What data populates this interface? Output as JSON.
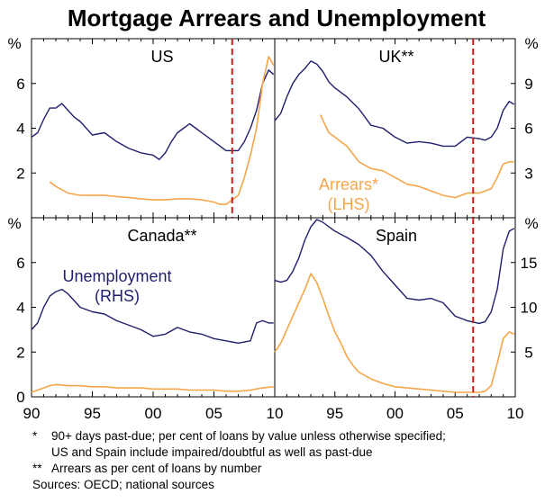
{
  "chart_data": {
    "type": "line",
    "title": "Mortgage Arrears and Unemployment",
    "units": {
      "lhs": "%",
      "rhs": "%"
    },
    "x_tick_labels": [
      "90",
      "95",
      "00",
      "05",
      "10"
    ],
    "colors": {
      "unemployment": "#1f1f6e",
      "arrears": "#f5a64a",
      "marker": "#cc1a1a"
    },
    "panels": [
      {
        "name": "US",
        "lhs_ticks": [
          "2",
          "4",
          "6"
        ],
        "rhs_ticks": [],
        "event_line_year": 2006.5,
        "series": [
          {
            "name": "Unemployment",
            "axis": "rhs",
            "x": [
              1990,
              1990.5,
              1991,
              1991.5,
              1992,
              1992.5,
              1993,
              1993.5,
              1994,
              1995,
              1996,
              1997,
              1998,
              1999,
              2000,
              2000.5,
              2001,
              2001.5,
              2002,
              2002.5,
              2003,
              2003.5,
              2004,
              2005,
              2006,
              2007,
              2007.5,
              2008,
              2008.5,
              2009,
              2009.5,
              2009.9
            ],
            "y": [
              3.6,
              3.8,
              4.4,
              4.9,
              4.9,
              5.1,
              4.8,
              4.5,
              4.3,
              3.7,
              3.8,
              3.4,
              3.1,
              2.9,
              2.8,
              2.6,
              2.9,
              3.4,
              3.8,
              4.0,
              4.2,
              4.0,
              3.8,
              3.4,
              3.0,
              3.0,
              3.4,
              4.0,
              4.8,
              6.0,
              6.6,
              6.4
            ]
          },
          {
            "name": "Arrears",
            "axis": "lhs",
            "x": [
              1991.5,
              1992,
              1993,
              1994,
              1995,
              1996,
              1997,
              1998,
              1999,
              2000,
              2001,
              2002,
              2003,
              2004,
              2005,
              2005.5,
              2006,
              2006.5,
              2007,
              2007.5,
              2008,
              2008.5,
              2009,
              2009.5,
              2009.9
            ],
            "y": [
              1.6,
              1.4,
              1.1,
              1.0,
              1.0,
              1.0,
              0.95,
              0.9,
              0.85,
              0.8,
              0.8,
              0.85,
              0.85,
              0.8,
              0.7,
              0.6,
              0.6,
              0.8,
              1.0,
              1.8,
              2.8,
              4.0,
              6.0,
              7.2,
              6.8
            ]
          }
        ]
      },
      {
        "name": "UK**",
        "lhs_ticks": [],
        "rhs_ticks": [
          "3",
          "6",
          "9"
        ],
        "event_line_year": 2006.5,
        "series": [
          {
            "name": "Unemployment",
            "axis": "rhs",
            "x": [
              1990,
              1990.5,
              1991,
              1991.5,
              1992,
              1992.5,
              1993,
              1993.5,
              1994,
              1994.5,
              1995,
              1996,
              1997,
              1998,
              1999,
              2000,
              2001,
              2002,
              2003,
              2004,
              2005,
              2006,
              2007,
              2007.5,
              2008,
              2008.5,
              2009,
              2009.5,
              2009.9
            ],
            "y": [
              6.5,
              7.0,
              8.1,
              9.0,
              9.6,
              10.0,
              10.5,
              10.3,
              9.8,
              9.1,
              8.7,
              8.1,
              7.3,
              6.2,
              6.0,
              5.4,
              5.0,
              5.1,
              5.0,
              4.8,
              4.8,
              5.4,
              5.3,
              5.2,
              5.4,
              6.0,
              7.2,
              7.8,
              7.6
            ]
          },
          {
            "name": "Arrears",
            "axis": "lhs",
            "x": [
              1993.8,
              1994.5,
              1995,
              1996,
              1997,
              1998,
              1999,
              2000,
              2001,
              2002,
              2003,
              2004,
              2005,
              2006,
              2007,
              2007.5,
              2008,
              2008.5,
              2009,
              2009.5,
              2009.9
            ],
            "y": [
              4.6,
              3.8,
              3.6,
              3.2,
              2.5,
              2.2,
              2.1,
              1.8,
              1.5,
              1.4,
              1.2,
              1.0,
              0.9,
              1.1,
              1.1,
              1.2,
              1.3,
              1.8,
              2.4,
              2.5,
              2.5
            ]
          }
        ]
      },
      {
        "name": "Canada**",
        "lhs_ticks": [
          "0",
          "2",
          "4",
          "6"
        ],
        "rhs_ticks": [],
        "event_line_year": null,
        "series": [
          {
            "name": "Unemployment",
            "axis": "rhs",
            "x": [
              1990,
              1990.5,
              1991,
              1991.5,
              1992,
              1992.5,
              1993,
              1993.5,
              1994,
              1995,
              1996,
              1997,
              1998,
              1999,
              2000,
              2001,
              2002,
              2003,
              2004,
              2005,
              2006,
              2007,
              2008,
              2008.5,
              2009,
              2009.5,
              2009.9
            ],
            "y": [
              3.0,
              3.3,
              4.0,
              4.5,
              4.7,
              4.8,
              4.6,
              4.3,
              4.0,
              3.8,
              3.7,
              3.4,
              3.2,
              3.0,
              2.7,
              2.8,
              3.1,
              2.9,
              2.8,
              2.6,
              2.5,
              2.4,
              2.5,
              3.3,
              3.4,
              3.3,
              3.3
            ]
          },
          {
            "name": "Arrears",
            "axis": "lhs",
            "x": [
              1990,
              1990.5,
              1991,
              1991.5,
              1992,
              1993,
              1994,
              1995,
              1996,
              1997,
              1998,
              1999,
              2000,
              2001,
              2002,
              2003,
              2004,
              2005,
              2006,
              2007,
              2008,
              2009,
              2009.9
            ],
            "y": [
              0.2,
              0.3,
              0.4,
              0.5,
              0.55,
              0.5,
              0.5,
              0.45,
              0.45,
              0.4,
              0.4,
              0.4,
              0.35,
              0.35,
              0.35,
              0.3,
              0.3,
              0.3,
              0.25,
              0.25,
              0.3,
              0.4,
              0.45
            ]
          }
        ]
      },
      {
        "name": "Spain",
        "lhs_ticks": [],
        "rhs_ticks": [
          "5",
          "10",
          "15"
        ],
        "event_line_year": 2006.5,
        "series": [
          {
            "name": "Unemployment",
            "axis": "rhs",
            "x": [
              1990,
              1990.5,
              1991,
              1991.5,
              1992,
              1992.5,
              1993,
              1993.5,
              1994,
              1994.5,
              1995,
              1996,
              1997,
              1998,
              1999,
              2000,
              2001,
              2002,
              2003,
              2004,
              2005,
              2006,
              2007,
              2007.5,
              2008,
              2008.5,
              2009,
              2009.5,
              2009.9
            ],
            "y": [
              13.0,
              12.8,
              13.0,
              14.0,
              15.5,
              17.5,
              19.0,
              19.8,
              19.5,
              19.0,
              18.5,
              17.8,
              17.0,
              15.8,
              14.0,
              12.5,
              11.0,
              10.8,
              11.0,
              10.5,
              9.0,
              8.5,
              8.2,
              8.4,
              9.5,
              12.0,
              16.5,
              18.5,
              18.8
            ]
          },
          {
            "name": "Arrears",
            "axis": "lhs",
            "x": [
              1990,
              1990.5,
              1991,
              1991.5,
              1992,
              1992.5,
              1993,
              1993.5,
              1994,
              1994.5,
              1995,
              1995.5,
              1996,
              1996.5,
              1997,
              1998,
              1999,
              2000,
              2001,
              2002,
              2003,
              2004,
              2005,
              2006,
              2007,
              2007.5,
              2008,
              2008.5,
              2009,
              2009.5,
              2009.9
            ],
            "y": [
              2.0,
              2.4,
              3.0,
              3.6,
              4.2,
              4.8,
              5.5,
              5.1,
              4.4,
              3.6,
              2.9,
              2.4,
              1.8,
              1.4,
              1.1,
              0.8,
              0.6,
              0.45,
              0.4,
              0.35,
              0.3,
              0.25,
              0.2,
              0.2,
              0.2,
              0.25,
              0.5,
              1.5,
              2.6,
              2.9,
              2.8
            ]
          }
        ]
      }
    ],
    "annotations": [
      {
        "panel": "UK**",
        "line1": "Arrears*",
        "line2": "(LHS)",
        "color": "arrears"
      },
      {
        "panel": "Canada**",
        "line1": "Unemployment",
        "line2": "(RHS)",
        "color": "unemployment"
      }
    ]
  },
  "footnotes": [
    {
      "mark": "*",
      "text": "90+ days past-due; per cent of loans by value unless otherwise specified;"
    },
    {
      "mark": "",
      "text": "US and Spain include impaired/doubtful as well as past-due"
    },
    {
      "mark": "**",
      "text": "Arrears as per cent of loans by number"
    },
    {
      "mark": "",
      "text": "Sources: OECD; national sources"
    }
  ]
}
